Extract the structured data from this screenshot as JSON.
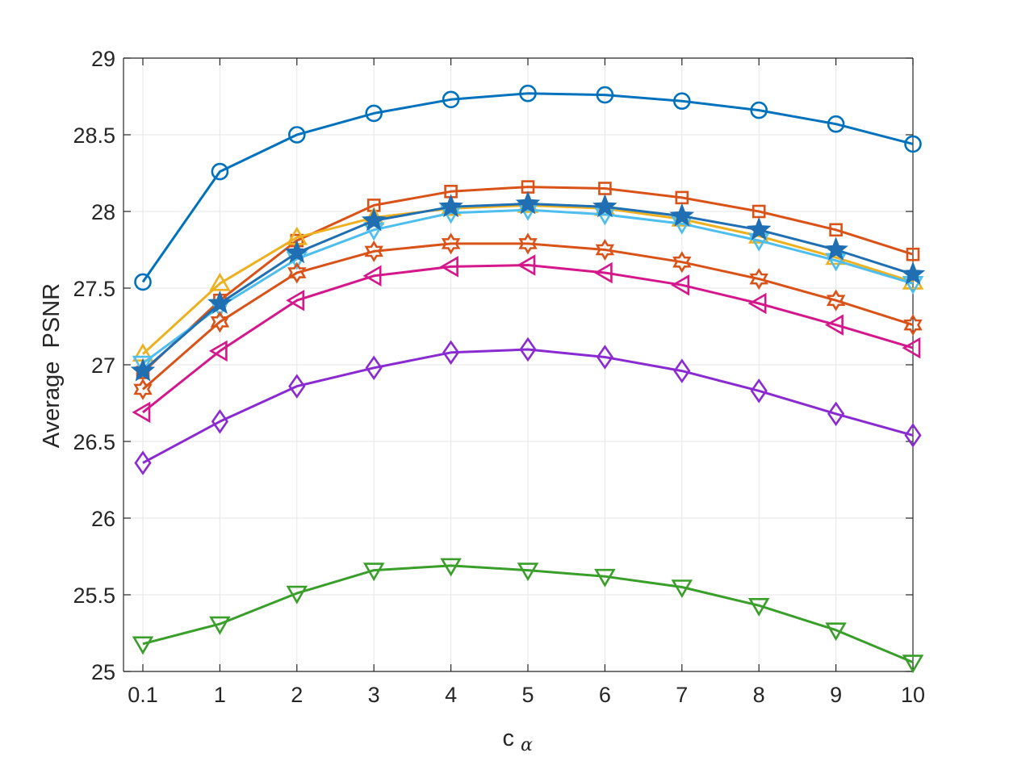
{
  "chart_data": {
    "type": "line",
    "xlabel": "c",
    "xlabel_subscript": "α",
    "ylabel": "Average  PSNR",
    "x_tick_labels": [
      "0.1",
      "1",
      "2",
      "3",
      "4",
      "5",
      "6",
      "7",
      "8",
      "9",
      "10"
    ],
    "y_ticks": [
      25,
      25.5,
      26,
      26.5,
      27,
      27.5,
      28,
      28.5,
      29
    ],
    "y_tick_labels": [
      "25",
      "25.5",
      "26",
      "26.5",
      "27",
      "27.5",
      "28",
      "28.5",
      "29"
    ],
    "ylim": [
      25,
      29
    ],
    "grid": true,
    "legend": "none",
    "series": [
      {
        "color": "#0072BD",
        "marker": "circle",
        "values": [
          27.54,
          28.26,
          28.5,
          28.64,
          28.73,
          28.77,
          28.76,
          28.72,
          28.66,
          28.57,
          28.44
        ]
      },
      {
        "color": "#D95319",
        "marker": "square",
        "values": [
          26.95,
          27.42,
          27.81,
          28.04,
          28.13,
          28.16,
          28.15,
          28.09,
          28.0,
          27.88,
          27.72
        ]
      },
      {
        "color": "#EDB120",
        "marker": "triangle-up",
        "values": [
          27.07,
          27.53,
          27.83,
          27.96,
          28.02,
          28.04,
          28.02,
          27.95,
          27.84,
          27.7,
          27.54
        ]
      },
      {
        "color": "#4DBEEE",
        "marker": "triangle-down",
        "values": [
          27.01,
          27.38,
          27.69,
          27.88,
          27.99,
          28.01,
          27.98,
          27.92,
          27.81,
          27.68,
          27.53
        ]
      },
      {
        "color": "#1F6FB2",
        "marker": "pentagram",
        "values": [
          26.96,
          27.4,
          27.73,
          27.94,
          28.03,
          28.05,
          28.03,
          27.97,
          27.88,
          27.75,
          27.59
        ]
      },
      {
        "color": "#D95319",
        "marker": "hexagram",
        "values": [
          26.84,
          27.28,
          27.6,
          27.74,
          27.79,
          27.79,
          27.75,
          27.67,
          27.56,
          27.42,
          27.26
        ]
      },
      {
        "color": "#D4178A",
        "marker": "triangle-left",
        "values": [
          26.69,
          27.09,
          27.42,
          27.58,
          27.64,
          27.65,
          27.6,
          27.52,
          27.4,
          27.26,
          27.11
        ]
      },
      {
        "color": "#8A2BD2",
        "marker": "diamond",
        "values": [
          26.36,
          26.63,
          26.86,
          26.98,
          27.08,
          27.1,
          27.05,
          26.96,
          26.83,
          26.68,
          26.54
        ]
      },
      {
        "color": "#3A9E2A",
        "marker": "triangle-down",
        "values": [
          25.18,
          25.31,
          25.51,
          25.66,
          25.69,
          25.66,
          25.62,
          25.55,
          25.43,
          25.27,
          25.06
        ]
      }
    ]
  }
}
